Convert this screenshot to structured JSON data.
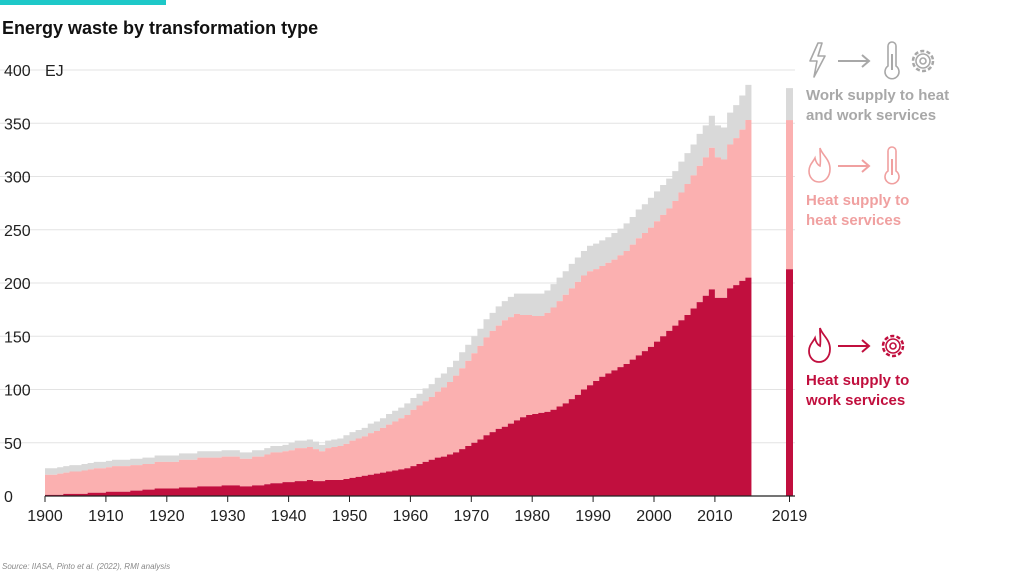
{
  "title": "Energy waste by transformation type",
  "source": "Source: IIASA, Pinto et al. (2022), RMI analysis",
  "colors": {
    "accent": "#1ec8c8",
    "heat_to_work": "#c10f3e",
    "heat_to_heat": "#fbb0b0",
    "work_to_heat_work": "#d9d9d9",
    "grid": "#e3e3e3"
  },
  "legend": [
    {
      "key": "work_to_heat_work",
      "label": "Work supply to heat\nand work services",
      "color": "#a8a8a8",
      "icons": [
        "lightning-icon",
        "arrow-icon",
        "thermometer-icon",
        "gear-icon"
      ]
    },
    {
      "key": "heat_to_heat",
      "label": "Heat supply to\nheat services",
      "color": "#f0a0a0",
      "icons": [
        "flame-icon",
        "arrow-icon",
        "thermometer-icon"
      ]
    },
    {
      "key": "heat_to_work",
      "label": "Heat supply to\nwork services",
      "color": "#c10f3e",
      "icons": [
        "flame-icon",
        "arrow-icon",
        "gear-icon"
      ]
    }
  ],
  "chart_data": {
    "type": "area",
    "stacked": true,
    "title": "Energy waste by transformation type",
    "ylabel": "EJ",
    "xlabel": "",
    "ylim": [
      0,
      400
    ],
    "yticks": [
      0,
      50,
      100,
      150,
      200,
      250,
      300,
      350,
      400
    ],
    "xticks": [
      "1900",
      "1910",
      "1920",
      "1930",
      "1940",
      "1950",
      "1960",
      "1970",
      "1980",
      "1990",
      "2000",
      "2010",
      "2019"
    ],
    "grid": true,
    "legend_position": "right",
    "x_start": 1900,
    "x_end": 2015,
    "series": [
      {
        "name": "Heat supply to work services",
        "values": [
          1,
          1,
          1,
          2,
          2,
          2,
          2,
          3,
          3,
          3,
          4,
          4,
          4,
          4,
          5,
          5,
          6,
          6,
          7,
          7,
          7,
          7,
          8,
          8,
          8,
          9,
          9,
          9,
          9,
          10,
          10,
          10,
          9,
          9,
          10,
          10,
          11,
          12,
          12,
          13,
          13,
          14,
          14,
          15,
          14,
          14,
          15,
          15,
          15,
          16,
          17,
          18,
          19,
          20,
          21,
          22,
          23,
          24,
          25,
          26,
          28,
          30,
          32,
          34,
          36,
          37,
          39,
          41,
          44,
          47,
          50,
          53,
          57,
          60,
          63,
          65,
          68,
          71,
          74,
          76,
          77,
          78,
          79,
          81,
          84,
          87,
          91,
          95,
          100,
          104,
          108,
          112,
          115,
          118,
          121,
          124,
          128,
          132,
          136,
          140,
          145,
          150,
          155,
          160,
          165,
          170,
          176,
          182,
          188,
          194,
          186,
          186,
          195,
          198,
          202,
          205
        ]
      },
      {
        "name": "Heat supply to heat services",
        "values": [
          19,
          19,
          20,
          20,
          21,
          21,
          22,
          22,
          23,
          23,
          23,
          24,
          24,
          24,
          24,
          24,
          24,
          24,
          25,
          25,
          25,
          25,
          26,
          26,
          26,
          27,
          27,
          27,
          27,
          27,
          27,
          27,
          26,
          26,
          27,
          27,
          28,
          29,
          29,
          29,
          30,
          31,
          31,
          31,
          30,
          28,
          30,
          31,
          32,
          33,
          35,
          36,
          37,
          39,
          40,
          42,
          44,
          46,
          48,
          50,
          53,
          55,
          57,
          59,
          62,
          65,
          68,
          72,
          76,
          80,
          84,
          88,
          92,
          95,
          97,
          100,
          100,
          100,
          96,
          94,
          92,
          91,
          93,
          96,
          99,
          102,
          104,
          106,
          107,
          107,
          105,
          104,
          104,
          104,
          105,
          106,
          108,
          110,
          111,
          112,
          113,
          114,
          115,
          117,
          120,
          123,
          125,
          128,
          130,
          133,
          132,
          130,
          135,
          138,
          142,
          148
        ]
      },
      {
        "name": "Work supply to heat and work services",
        "values": [
          6,
          6,
          6,
          6,
          6,
          6,
          6,
          6,
          6,
          6,
          6,
          6,
          6,
          6,
          6,
          6,
          6,
          6,
          6,
          6,
          6,
          6,
          6,
          6,
          6,
          6,
          6,
          6,
          6,
          6,
          6,
          6,
          6,
          6,
          6,
          6,
          6,
          6,
          6,
          6,
          7,
          7,
          7,
          7,
          7,
          6,
          7,
          7,
          7,
          8,
          8,
          8,
          8,
          9,
          9,
          9,
          10,
          10,
          10,
          11,
          11,
          11,
          12,
          12,
          13,
          13,
          14,
          14,
          15,
          15,
          16,
          16,
          17,
          17,
          18,
          18,
          19,
          19,
          20,
          20,
          21,
          21,
          21,
          22,
          22,
          22,
          23,
          23,
          23,
          24,
          24,
          24,
          24,
          25,
          25,
          26,
          26,
          27,
          27,
          28,
          28,
          28,
          28,
          28,
          29,
          29,
          29,
          30,
          30,
          30,
          30,
          30,
          30,
          31,
          32,
          33
        ]
      }
    ],
    "bar_2019": {
      "x": "2019",
      "values": {
        "Heat supply to work services": 213,
        "Heat supply to heat services": 140,
        "Work supply to heat and work services": 30
      }
    }
  }
}
